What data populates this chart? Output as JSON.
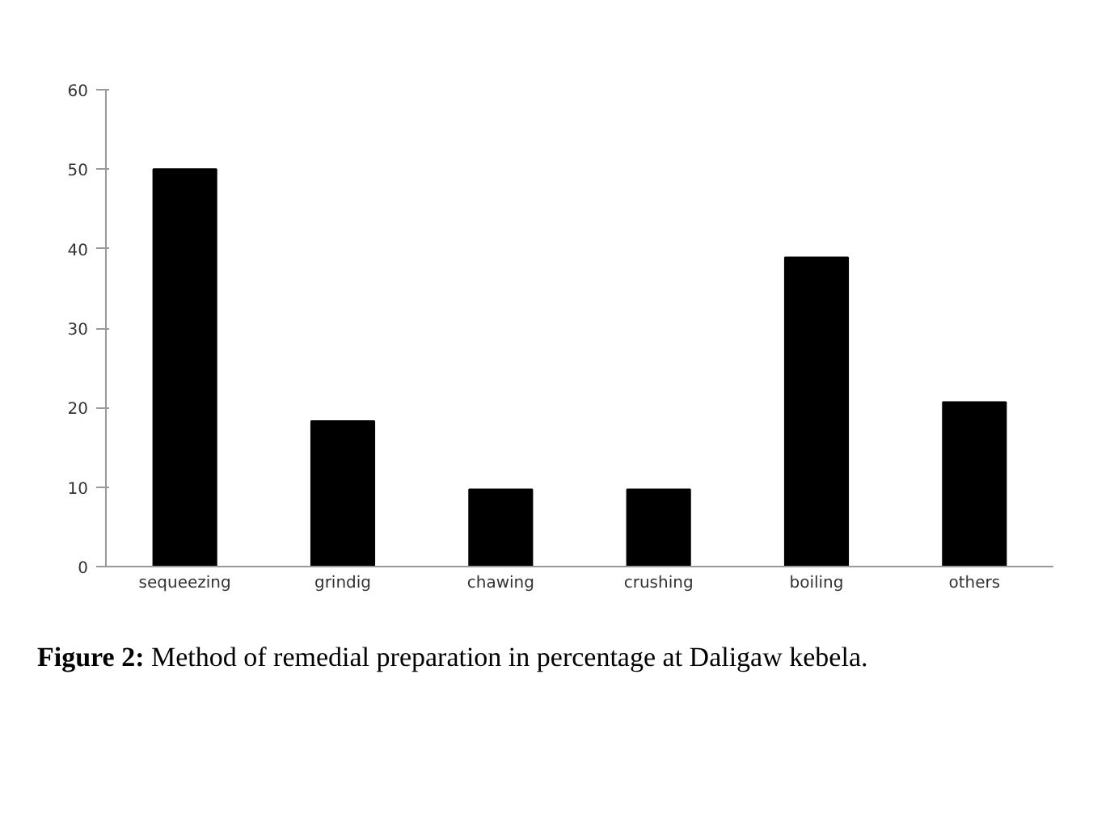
{
  "chart_data": {
    "type": "bar",
    "categories": [
      "sequeezing",
      "grindig",
      "chawing",
      "crushing",
      "boiling",
      "others"
    ],
    "values": [
      50,
      18.3,
      9.7,
      9.7,
      38.9,
      20.7
    ],
    "color": "#000000",
    "ylim": [
      0,
      60
    ],
    "yticks": [
      0,
      10,
      20,
      30,
      40,
      50,
      60
    ],
    "grid": false,
    "annotations": [
      "Figure 2:",
      "Method of remedial preparation in percentage at Daligaw kebela."
    ]
  }
}
